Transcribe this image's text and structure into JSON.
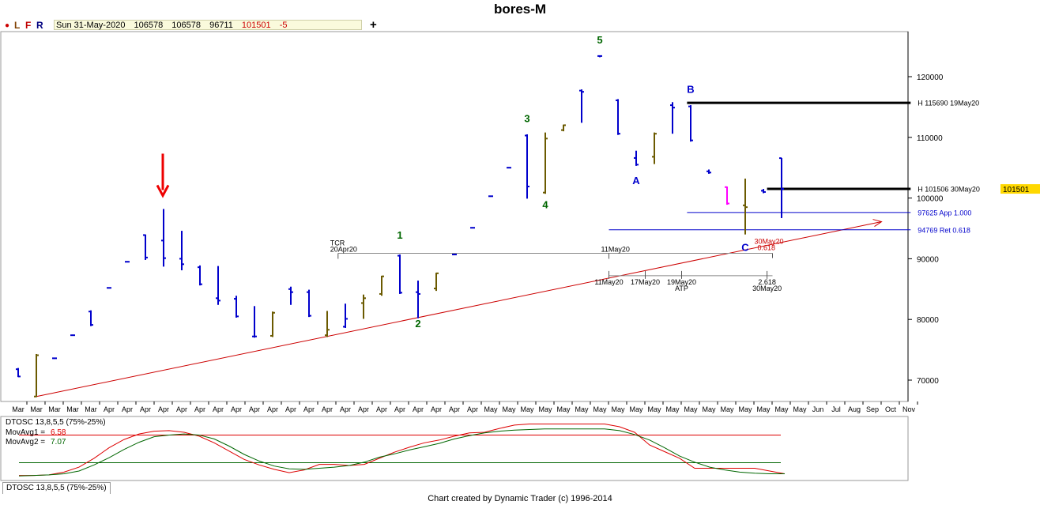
{
  "window_title": "bores-M",
  "toolbar": {
    "buttons": [
      {
        "label": "L",
        "color": "#804000"
      },
      {
        "label": "F",
        "color": "#c00000"
      },
      {
        "label": "R",
        "color": "#000080"
      }
    ],
    "quote": {
      "date": "Sun 31-May-2020",
      "open": "106578",
      "high": "106578",
      "low": "96711",
      "close": "101501",
      "change": "-5"
    },
    "add_label": "+"
  },
  "chart_data": [
    {
      "type": "ohlc",
      "title": "bores-M",
      "ylim": [
        66000,
        127000
      ],
      "y_ticks": [
        70000,
        80000,
        90000,
        100000,
        110000,
        120000
      ],
      "x_tick_labels": [
        "Mar",
        "Mar",
        "Mar",
        "Mar",
        "Mar",
        "Apr",
        "Apr",
        "Apr",
        "Apr",
        "Apr",
        "Apr",
        "Apr",
        "Apr",
        "Apr",
        "Apr",
        "Apr",
        "Apr",
        "Apr",
        "Apr",
        "Apr",
        "Apr",
        "Apr",
        "Apr",
        "Apr",
        "Apr",
        "Apr",
        "May",
        "May",
        "May",
        "May",
        "May",
        "May",
        "May",
        "May",
        "May",
        "May",
        "May",
        "May",
        "May",
        "May",
        "May",
        "May",
        "May",
        "May",
        "Jun",
        "Jul",
        "Aug",
        "Sep",
        "Oct",
        "Nov"
      ],
      "last_price_label": "101501",
      "colors": {
        "up": "#6b5a00",
        "down": "#0000cc",
        "special": "#ff00ff"
      },
      "bars": [
        {
          "h": 72000,
          "l": 70500,
          "o": 71800,
          "c": 70600,
          "col": "down"
        },
        {
          "h": 74300,
          "l": 67200,
          "o": 67300,
          "c": 74100,
          "col": "up"
        },
        {
          "h": 73700,
          "l": 73500,
          "o": 73600,
          "c": 73600,
          "col": "down"
        },
        {
          "h": 77500,
          "l": 77300,
          "o": 77400,
          "c": 77400,
          "col": "down"
        },
        {
          "h": 81500,
          "l": 78900,
          "o": 81300,
          "c": 79100,
          "col": "down"
        },
        {
          "h": 85300,
          "l": 85100,
          "o": 85200,
          "c": 85200,
          "col": "down"
        },
        {
          "h": 89600,
          "l": 89400,
          "o": 89500,
          "c": 89500,
          "col": "down"
        },
        {
          "h": 94000,
          "l": 89800,
          "o": 93900,
          "c": 90200,
          "col": "down"
        },
        {
          "h": 98200,
          "l": 88700,
          "o": 93000,
          "c": 90100,
          "col": "down"
        },
        {
          "h": 94600,
          "l": 88100,
          "o": 90000,
          "c": 89100,
          "col": "down"
        },
        {
          "h": 88900,
          "l": 85600,
          "o": 88600,
          "c": 85800,
          "col": "down"
        },
        {
          "h": 88800,
          "l": 82400,
          "o": 83500,
          "c": 83100,
          "col": "down"
        },
        {
          "h": 83900,
          "l": 80300,
          "o": 83400,
          "c": 80500,
          "col": "down"
        },
        {
          "h": 82200,
          "l": 77000,
          "o": 77200,
          "c": 77200,
          "col": "down"
        },
        {
          "h": 81300,
          "l": 77100,
          "o": 77300,
          "c": 81100,
          "col": "up"
        },
        {
          "h": 85400,
          "l": 82400,
          "o": 85000,
          "c": 84500,
          "col": "down"
        },
        {
          "h": 84900,
          "l": 80400,
          "o": 84500,
          "c": 80600,
          "col": "down"
        },
        {
          "h": 81400,
          "l": 77100,
          "o": 77400,
          "c": 78300,
          "col": "up"
        },
        {
          "h": 82600,
          "l": 78600,
          "o": 78800,
          "c": 80100,
          "col": "down"
        },
        {
          "h": 84100,
          "l": 80100,
          "o": 82700,
          "c": 83500,
          "col": "up"
        },
        {
          "h": 87200,
          "l": 83900,
          "o": 84200,
          "c": 87100,
          "col": "up"
        },
        {
          "h": 90700,
          "l": 84200,
          "o": 90500,
          "c": 84400,
          "col": "down"
        },
        {
          "h": 86400,
          "l": 80200,
          "o": 84500,
          "c": 84200,
          "col": "down"
        },
        {
          "h": 87700,
          "l": 84700,
          "o": 85100,
          "c": 87600,
          "col": "up"
        },
        {
          "h": 90800,
          "l": 90600,
          "o": 90700,
          "c": 90700,
          "col": "down"
        },
        {
          "h": 95200,
          "l": 95000,
          "o": 95100,
          "c": 95100,
          "col": "down"
        },
        {
          "h": 100400,
          "l": 100200,
          "o": 100300,
          "c": 100300,
          "col": "down"
        },
        {
          "h": 105100,
          "l": 104900,
          "o": 105000,
          "c": 105000,
          "col": "down"
        },
        {
          "h": 110500,
          "l": 99900,
          "o": 110300,
          "c": 101900,
          "col": "down"
        },
        {
          "h": 110800,
          "l": 100700,
          "o": 100900,
          "c": 109800,
          "col": "up"
        },
        {
          "h": 112100,
          "l": 111000,
          "o": 111200,
          "c": 112000,
          "col": "up"
        },
        {
          "h": 117900,
          "l": 112400,
          "o": 117700,
          "c": 117500,
          "col": "down"
        },
        {
          "h": 123500,
          "l": 123200,
          "o": 123400,
          "c": 123400,
          "col": "down"
        },
        {
          "h": 116300,
          "l": 110400,
          "o": 116100,
          "c": 110600,
          "col": "down"
        },
        {
          "h": 107800,
          "l": 105300,
          "o": 106600,
          "c": 105500,
          "col": "down"
        },
        {
          "h": 110800,
          "l": 105600,
          "o": 106800,
          "c": 110600,
          "col": "up"
        },
        {
          "h": 115800,
          "l": 110600,
          "o": 115300,
          "c": 114900,
          "col": "down"
        },
        {
          "h": 115300,
          "l": 109300,
          "o": 115100,
          "c": 109500,
          "col": "down"
        },
        {
          "h": 104700,
          "l": 104000,
          "o": 104400,
          "c": 104200,
          "col": "down"
        },
        {
          "h": 101900,
          "l": 98900,
          "o": 101800,
          "c": 99100,
          "col": "special"
        },
        {
          "h": 103200,
          "l": 94000,
          "o": 98800,
          "c": 98500,
          "col": "up"
        },
        {
          "h": 101500,
          "l": 100800,
          "o": 101200,
          "c": 101000,
          "col": "down"
        },
        {
          "h": 106600,
          "l": 96700,
          "o": 106578,
          "c": 101501,
          "col": "down"
        }
      ],
      "arrow_bar": 8,
      "wave_labels": [
        {
          "text": "5",
          "bar": 32,
          "price": 125500,
          "color": "#006600"
        },
        {
          "text": "3",
          "bar": 28,
          "price": 112500,
          "color": "#006600"
        },
        {
          "text": "4",
          "bar": 29,
          "price": 98300,
          "color": "#006600"
        },
        {
          "text": "1",
          "bar": 21,
          "price": 93300,
          "color": "#006600"
        },
        {
          "text": "2",
          "bar": 22,
          "price": 78700,
          "color": "#006600"
        },
        {
          "text": "A",
          "bar": 34,
          "price": 102300,
          "color": "#0000cc"
        },
        {
          "text": "B",
          "bar": 37,
          "price": 117300,
          "color": "#0000cc"
        },
        {
          "text": "C",
          "bar": 40,
          "price": 91300,
          "color": "#0000cc"
        }
      ],
      "hlines": [
        {
          "price": 115690,
          "from_bar": 36.8,
          "to_bar": 49.1,
          "label": "H 115690 19May20",
          "width": 3,
          "color": "#000000"
        },
        {
          "price": 101506,
          "from_bar": 41.2,
          "to_bar": 49.1,
          "label": "H 101506 30May20",
          "width": 3,
          "color": "#000000"
        },
        {
          "price": 97625,
          "from_bar": 36.8,
          "to_bar": 49.1,
          "label": "97625 App 1.000",
          "width": 1,
          "color": "#0000cc"
        },
        {
          "price": 94769,
          "from_bar": 32.5,
          "to_bar": 49.1,
          "label": "94769 Ret 0.618",
          "width": 1,
          "color": "#0000cc"
        }
      ],
      "trendline": {
        "from": {
          "bar": 1,
          "price": 67300
        },
        "to": {
          "bar": 47.5,
          "price": 96100
        },
        "color": "#cc0000"
      },
      "tcr": {
        "price": 90900,
        "from_bar": 17.6,
        "to_bar": 41.5,
        "label_bar": 17.6,
        "labels": [
          "TCR",
          "20Apr20",
          "11May20"
        ],
        "r_label": [
          "30May20",
          "0.618"
        ]
      },
      "time_bands": {
        "price": 87200,
        "from_bar": 32.5,
        "to_bar": 41.5,
        "ticks": [
          {
            "bar": 32.5,
            "lines": [
              "11May20"
            ]
          },
          {
            "bar": 34.5,
            "lines": [
              "17May20"
            ]
          },
          {
            "bar": 36.5,
            "lines": [
              "19May20",
              "ATP"
            ]
          },
          {
            "bar": 41.2,
            "lines": [
              "2.618",
              "30May20"
            ]
          }
        ]
      }
    },
    {
      "type": "line",
      "title": "DTOSC 13,8,5,5 (75%-25%)",
      "series": [
        {
          "name": "MovAvg1",
          "value_label": "6.58",
          "color": "#dd0000",
          "values": [
            2,
            2,
            3,
            8,
            17,
            33,
            52,
            67,
            77,
            82,
            83,
            80,
            73,
            61,
            46,
            31,
            21,
            13,
            7,
            12,
            22,
            22,
            20,
            22,
            33,
            44,
            53,
            61,
            66,
            73,
            79,
            80,
            87,
            93,
            95,
            95,
            95,
            95,
            95,
            95,
            90,
            80,
            57,
            45,
            33,
            15,
            15,
            15,
            15,
            15,
            10,
            5
          ]
        },
        {
          "name": "MovAvg2",
          "value_label": "7.07",
          "color": "#006600",
          "values": [
            1,
            2,
            3,
            5,
            10,
            21,
            34,
            49,
            62,
            72,
            75,
            77,
            75,
            68,
            55,
            40,
            28,
            19,
            14,
            13,
            15,
            17,
            20,
            26,
            35,
            41,
            48,
            54,
            60,
            68,
            74,
            79,
            82,
            84,
            85,
            86,
            86,
            86,
            86,
            86,
            83,
            76,
            66,
            52,
            37,
            26,
            17,
            12,
            8,
            6,
            5,
            5
          ]
        }
      ],
      "ref_levels": [
        75,
        25
      ],
      "ylim": [
        0,
        100
      ]
    }
  ],
  "bottom_tab": "DTOSC 13,8,5,5 (75%-25%)",
  "credit": "Chart created by Dynamic Trader  (c) 1996-2014"
}
